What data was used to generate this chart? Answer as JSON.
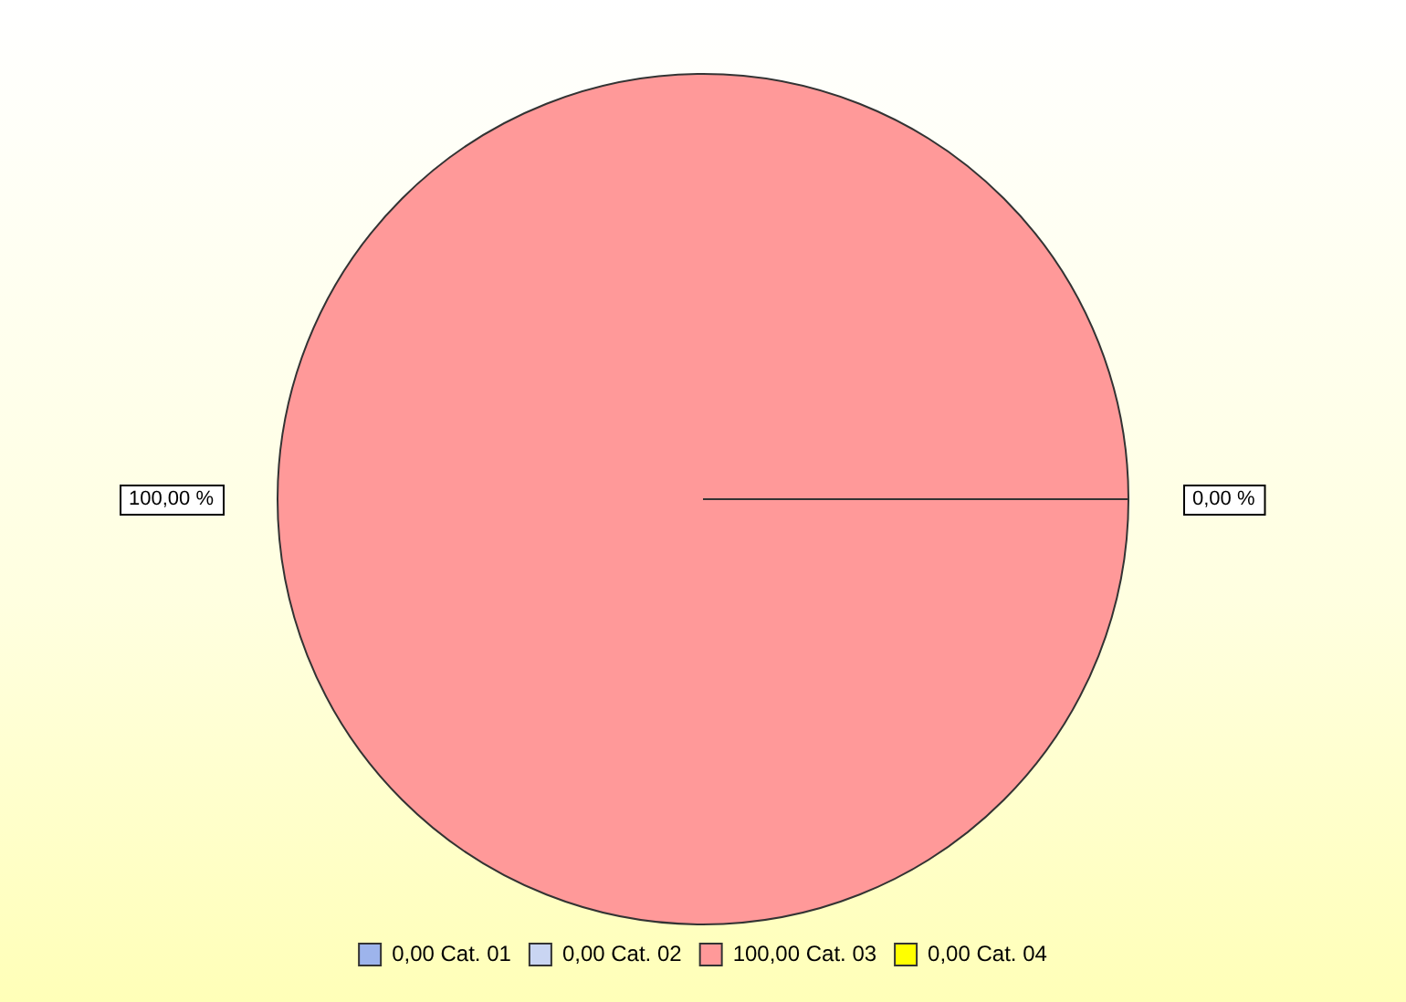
{
  "chart_data": {
    "type": "pie",
    "categories": [
      "0,00 Cat. 01",
      "0,00 Cat. 02",
      "100,00 Cat. 03",
      "0,00 Cat. 04"
    ],
    "values": [
      0,
      0,
      100,
      0
    ],
    "colors": [
      "#9db4ec",
      "#c9d5f2",
      "#ff9999",
      "#ffff00"
    ],
    "value_labels": [
      null,
      null,
      "100,00 %",
      "0,00 %"
    ],
    "legend": "bottom"
  }
}
